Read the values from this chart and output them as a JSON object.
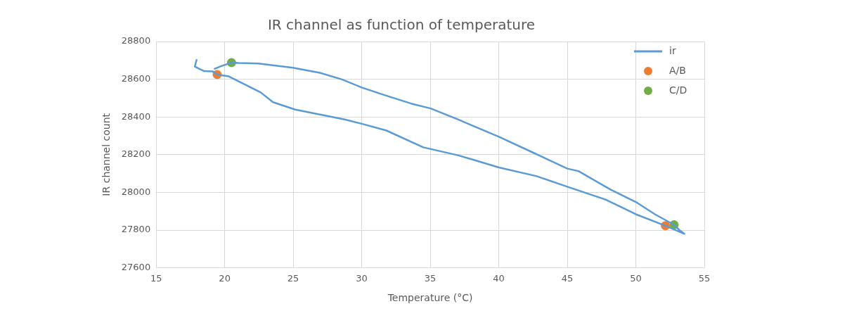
{
  "chart_data": {
    "type": "line",
    "title": "IR channel as function of temperature",
    "xlabel": "Temperature (°C)",
    "ylabel": "IR channel count",
    "xlim": [
      15,
      55
    ],
    "xticks": [
      15,
      20,
      25,
      30,
      35,
      40,
      45,
      50,
      55
    ],
    "ylim": [
      27600,
      28800
    ],
    "yticks": [
      27600,
      27800,
      28000,
      28200,
      28400,
      28600,
      28800
    ],
    "grid": true,
    "legend": "top right",
    "series": [
      {
        "name": "ir",
        "color": "#5b9bd5",
        "x": [
          17.96,
          17.82,
          18.5,
          19.13,
          19.45,
          20.3,
          21.56,
          22.63,
          23.53,
          25.15,
          26.95,
          28.75,
          30.0,
          31.8,
          34.49,
          37.01,
          38.09,
          40.01,
          42.76,
          45.0,
          47.79,
          50.0,
          52.16,
          53.54,
          53.18,
          52.79,
          51.39,
          50.0,
          48.15,
          45.81,
          45.0,
          43.3,
          40.01,
          38.09,
          37.01,
          35.03,
          33.6,
          31.62,
          30.0,
          28.56,
          26.95,
          24.97,
          22.46,
          21.02,
          20.5,
          19.76,
          19.22
        ],
        "values": [
          28706,
          28667,
          28643,
          28641,
          28625,
          28615,
          28569,
          28530,
          28478,
          28439,
          28413,
          28387,
          28364,
          28328,
          28239,
          28197,
          28174,
          28132,
          28086,
          28030,
          27962,
          27884,
          27823,
          27780,
          27800,
          27828,
          27884,
          27949,
          28015,
          28113,
          28126,
          28184,
          28295,
          28354,
          28387,
          28445,
          28471,
          28517,
          28556,
          28599,
          28634,
          28661,
          28683,
          28686,
          28688,
          28670,
          28654
        ]
      },
      {
        "name": "A/B",
        "type": "scatter",
        "color": "#ed7d31",
        "x": [
          19.45,
          52.16
        ],
        "values": [
          28625,
          27823
        ]
      },
      {
        "name": "C/D",
        "type": "scatter",
        "color": "#70ad47",
        "x": [
          20.5,
          52.79
        ],
        "values": [
          28688,
          27828
        ]
      }
    ]
  }
}
